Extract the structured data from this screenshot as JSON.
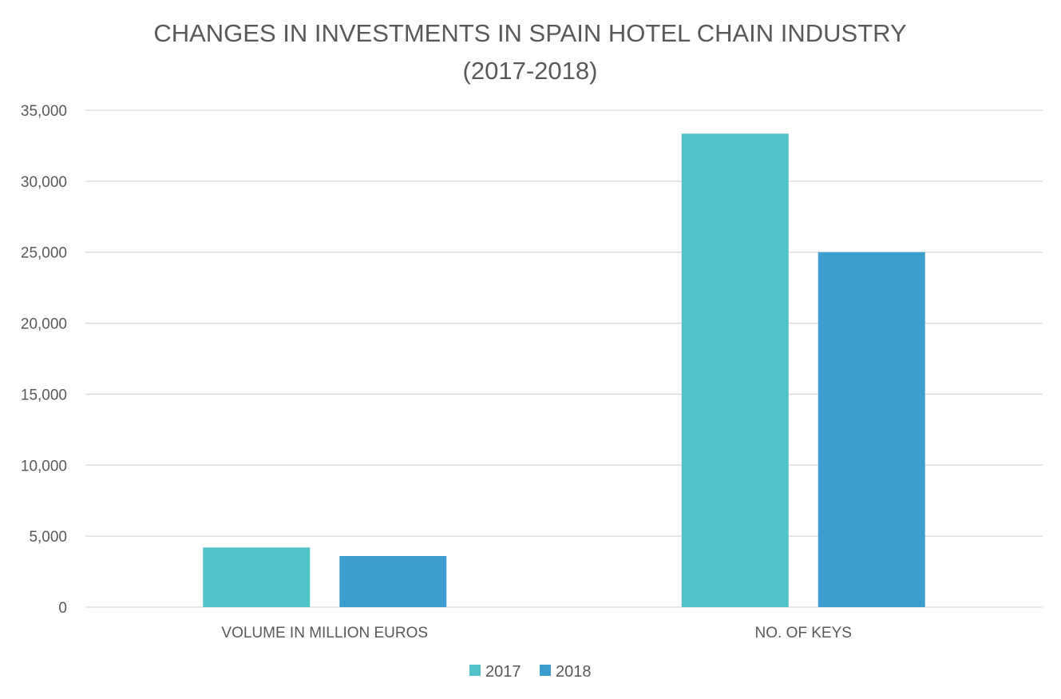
{
  "chart_data": {
    "type": "bar",
    "title": [
      "CHANGES IN INVESTMENTS IN SPAIN HOTEL CHAIN INDUSTRY",
      "(2017-2018)"
    ],
    "categories": [
      "VOLUME IN MILLION EUROS",
      "NO. OF KEYS"
    ],
    "series": [
      {
        "name": "2017",
        "values": [
          4200,
          33350
        ],
        "color": "#4fc3c8"
      },
      {
        "name": "2018",
        "values": [
          3600,
          25000
        ],
        "color": "#3c9dcf"
      }
    ],
    "ylim": [
      0,
      35000
    ],
    "yticks": [
      0,
      5000,
      10000,
      15000,
      20000,
      25000,
      30000,
      35000
    ],
    "ytick_labels": [
      "0",
      "5,000",
      "10,000",
      "15,000",
      "20,000",
      "25,000",
      "30,000",
      "35,000"
    ],
    "grid": true,
    "gridline_color": "#d9d9d9",
    "legend": "bottom"
  }
}
